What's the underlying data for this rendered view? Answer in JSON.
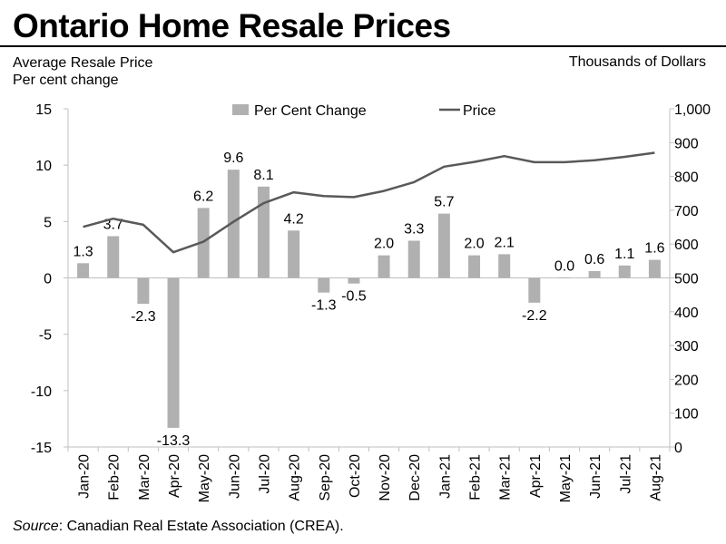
{
  "header": {
    "title": "Ontario Home Resale Prices",
    "left_axis_title_line1": "Average Resale Price",
    "left_axis_title_line2": "Per cent change",
    "right_axis_title": "Thousands  of Dollars"
  },
  "footer": {
    "source_label": "Source",
    "source_text": ": Canadian Real Estate Association (CREA)."
  },
  "colors": {
    "bar": "#b0b0b0",
    "line": "#595959",
    "axis": "#bfbfbf",
    "text": "#000000"
  },
  "chart_data": {
    "type": "bar+line",
    "title": "Ontario Home Resale Prices",
    "categories": [
      "Jan-20",
      "Feb-20",
      "Mar-20",
      "Apr-20",
      "May-20",
      "Jun-20",
      "Jul-20",
      "Aug-20",
      "Sep-20",
      "Oct-20",
      "Nov-20",
      "Dec-20",
      "Jan-21",
      "Feb-21",
      "Mar-21",
      "Apr-21",
      "May-21",
      "Jun-21",
      "Jul-21",
      "Aug-21"
    ],
    "series": [
      {
        "name": "Per Cent Change",
        "type": "bar",
        "axis": "left",
        "values": [
          1.3,
          3.7,
          -2.3,
          -13.3,
          6.2,
          9.6,
          8.1,
          4.2,
          -1.3,
          -0.5,
          2.0,
          3.3,
          5.7,
          2.0,
          2.1,
          -2.2,
          0.0,
          0.6,
          1.1,
          1.6
        ],
        "labels": [
          "1.3",
          "3.7",
          "-2.3",
          "-13.3",
          "6.2",
          "9.6",
          "8.1",
          "4.2",
          "-1.3",
          "-0.5",
          "2.0",
          "3.3",
          "5.7",
          "2.0",
          "2.1",
          "-2.2",
          "0.0",
          "0.6",
          "1.1",
          "1.6"
        ]
      },
      {
        "name": "Price",
        "type": "line",
        "axis": "right",
        "values": [
          651,
          675,
          657,
          576,
          607,
          666,
          721,
          753,
          742,
          739,
          757,
          783,
          829,
          843,
          860,
          842,
          842,
          848,
          858,
          870
        ]
      }
    ],
    "left_axis": {
      "min": -15,
      "max": 15,
      "ticks": [
        "15",
        "10",
        "5",
        "0",
        "-5",
        "-10",
        "-15"
      ]
    },
    "right_axis": {
      "min": 0,
      "max": 1000,
      "ticks": [
        "1,000",
        "900",
        "800",
        "700",
        "600",
        "500",
        "400",
        "300",
        "200",
        "100",
        "0"
      ]
    },
    "legend_position": "top",
    "grid": false
  }
}
